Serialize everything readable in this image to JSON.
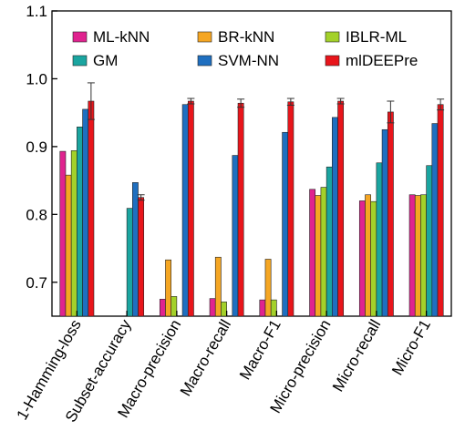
{
  "chart_data": {
    "type": "bar",
    "title": "",
    "xlabel": "",
    "ylabel": "",
    "ylim": [
      0.65,
      1.1
    ],
    "yticks": [
      0.7,
      0.8,
      0.9,
      1.0,
      1.1
    ],
    "ytick_labels": [
      "0.7",
      "0.8",
      "0.9",
      "1.0",
      "1.1"
    ],
    "grid": false,
    "legend_position": "top",
    "categories": [
      "1-Hamming-loss",
      "Subset-accuracy",
      "Macro-precision",
      "Macro-recall",
      "Macro-F1",
      "Micro-precision",
      "Micro-recall",
      "Micro-F1"
    ],
    "series": [
      {
        "name": "ML-kNN",
        "color": "#e0238f",
        "values": [
          0.893,
          null,
          0.675,
          0.676,
          0.674,
          0.837,
          0.82,
          0.829
        ]
      },
      {
        "name": "BR-kNN",
        "color": "#f5a623",
        "values": [
          0.858,
          null,
          0.733,
          0.737,
          0.734,
          0.828,
          0.829,
          0.828
        ]
      },
      {
        "name": "IBLR-ML",
        "color": "#a3d12a",
        "values": [
          0.894,
          null,
          0.679,
          0.671,
          0.674,
          0.84,
          0.819,
          0.829
        ]
      },
      {
        "name": "GM",
        "color": "#1aa5a0",
        "values": [
          0.929,
          0.809,
          null,
          null,
          null,
          0.87,
          0.876,
          0.872
        ]
      },
      {
        "name": "SVM-NN",
        "color": "#1f6fc0",
        "values": [
          0.955,
          0.847,
          0.962,
          0.887,
          0.921,
          0.943,
          0.925,
          0.934
        ]
      },
      {
        "name": "mlDEEPre",
        "color": "#e8151b",
        "values": [
          0.967,
          0.825,
          0.967,
          0.964,
          0.966,
          0.967,
          0.951,
          0.962
        ]
      }
    ],
    "errors": {
      "mlDEEPre": [
        0.027,
        0.004,
        0.004,
        0.006,
        0.005,
        0.004,
        0.016,
        0.008
      ]
    },
    "legend_order": [
      "ML-kNN",
      "BR-kNN",
      "IBLR-ML",
      "GM",
      "SVM-NN",
      "mlDEEPre"
    ]
  }
}
